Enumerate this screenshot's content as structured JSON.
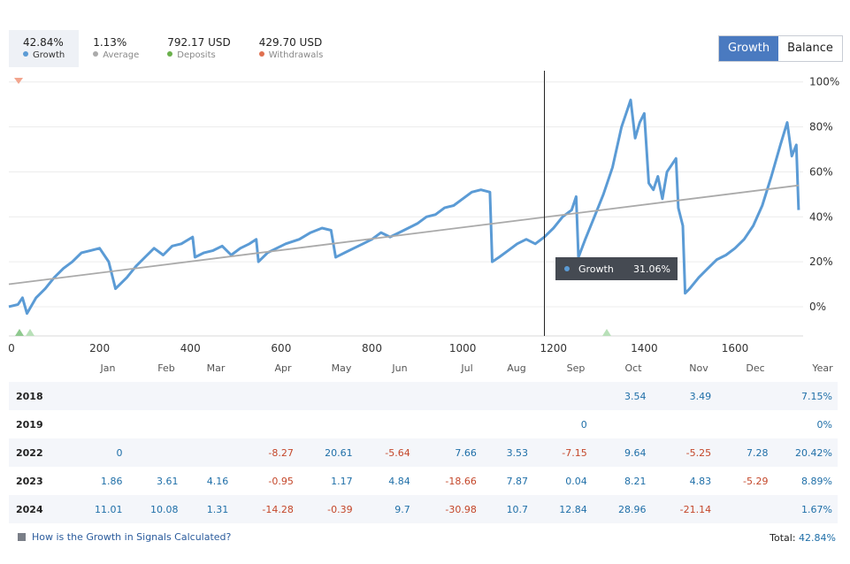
{
  "stats": [
    {
      "value": "42.84%",
      "label": "Growth",
      "color": "#5b9bd5",
      "active": true
    },
    {
      "value": "1.13%",
      "label": "Average",
      "color": "#aaaaaa",
      "active": false
    },
    {
      "value": "792.17 USD",
      "label": "Deposits",
      "color": "#6ab04c",
      "active": false
    },
    {
      "value": "429.70 USD",
      "label": "Withdrawals",
      "color": "#e07050",
      "active": false
    }
  ],
  "toggle": {
    "growth": "Growth",
    "balance": "Balance"
  },
  "tooltip": {
    "label": "Growth",
    "value": "31.06%"
  },
  "chart_data": {
    "type": "line",
    "xlim": [
      0,
      1750
    ],
    "ylim": [
      -13,
      105
    ],
    "x_ticks": [
      0,
      200,
      400,
      600,
      800,
      1000,
      1200,
      1400,
      1600
    ],
    "y_ticks": [
      0,
      20,
      40,
      60,
      80,
      100
    ],
    "y_tick_labels": [
      "0%",
      "20%",
      "40%",
      "60%",
      "80%",
      "100%"
    ],
    "crosshair_x": 1180,
    "series": [
      {
        "color": "#5b9bd5",
        "points": [
          [
            0,
            0
          ],
          [
            20,
            1
          ],
          [
            30,
            4
          ],
          [
            40,
            -3
          ],
          [
            60,
            4
          ],
          [
            80,
            8
          ],
          [
            100,
            13
          ],
          [
            120,
            17
          ],
          [
            140,
            20
          ],
          [
            160,
            24
          ],
          [
            180,
            25
          ],
          [
            200,
            26
          ],
          [
            220,
            20
          ],
          [
            235,
            8
          ],
          [
            260,
            13
          ],
          [
            280,
            18
          ],
          [
            300,
            22
          ],
          [
            320,
            26
          ],
          [
            340,
            23
          ],
          [
            360,
            27
          ],
          [
            380,
            28
          ],
          [
            405,
            31
          ],
          [
            410,
            22
          ],
          [
            430,
            24
          ],
          [
            450,
            25
          ],
          [
            470,
            27
          ],
          [
            490,
            23
          ],
          [
            510,
            26
          ],
          [
            530,
            28
          ],
          [
            545,
            30
          ],
          [
            550,
            20
          ],
          [
            570,
            24
          ],
          [
            590,
            26
          ],
          [
            610,
            28
          ],
          [
            640,
            30
          ],
          [
            665,
            33
          ],
          [
            690,
            35
          ],
          [
            710,
            34
          ],
          [
            720,
            22
          ],
          [
            740,
            24
          ],
          [
            760,
            26
          ],
          [
            780,
            28
          ],
          [
            800,
            30
          ],
          [
            820,
            33
          ],
          [
            840,
            31
          ],
          [
            860,
            33
          ],
          [
            880,
            35
          ],
          [
            900,
            37
          ],
          [
            920,
            40
          ],
          [
            940,
            41
          ],
          [
            960,
            44
          ],
          [
            980,
            45
          ],
          [
            1000,
            48
          ],
          [
            1020,
            51
          ],
          [
            1040,
            52
          ],
          [
            1060,
            51
          ],
          [
            1065,
            20
          ],
          [
            1080,
            22
          ],
          [
            1100,
            25
          ],
          [
            1120,
            28
          ],
          [
            1140,
            30
          ],
          [
            1160,
            28
          ],
          [
            1180,
            31
          ],
          [
            1200,
            35
          ],
          [
            1220,
            40
          ],
          [
            1240,
            43
          ],
          [
            1250,
            49
          ],
          [
            1255,
            22
          ],
          [
            1270,
            30
          ],
          [
            1290,
            40
          ],
          [
            1310,
            50
          ],
          [
            1330,
            62
          ],
          [
            1350,
            80
          ],
          [
            1360,
            86
          ],
          [
            1370,
            92
          ],
          [
            1380,
            75
          ],
          [
            1390,
            82
          ],
          [
            1400,
            86
          ],
          [
            1410,
            55
          ],
          [
            1420,
            52
          ],
          [
            1430,
            58
          ],
          [
            1440,
            48
          ],
          [
            1450,
            60
          ],
          [
            1460,
            63
          ],
          [
            1470,
            66
          ],
          [
            1475,
            44
          ],
          [
            1485,
            36
          ],
          [
            1490,
            6
          ],
          [
            1500,
            8
          ],
          [
            1520,
            13
          ],
          [
            1540,
            17
          ],
          [
            1560,
            21
          ],
          [
            1580,
            23
          ],
          [
            1600,
            26
          ],
          [
            1620,
            30
          ],
          [
            1640,
            36
          ],
          [
            1660,
            45
          ],
          [
            1680,
            58
          ],
          [
            1700,
            72
          ],
          [
            1715,
            82
          ],
          [
            1725,
            67
          ],
          [
            1735,
            72
          ],
          [
            1740,
            43
          ]
        ]
      },
      {
        "color": "#aaaaaa",
        "points": [
          [
            0,
            10
          ],
          [
            1740,
            54
          ]
        ]
      }
    ]
  },
  "months": [
    "Jan",
    "Feb",
    "Mar",
    "Apr",
    "May",
    "Jun",
    "Jul",
    "Aug",
    "Sep",
    "Oct",
    "Nov",
    "Dec",
    "Year"
  ],
  "table": [
    {
      "year": "2018",
      "cells": [
        "",
        "",
        "",
        "",
        "",
        "",
        "",
        "",
        "",
        "3.54",
        "3.49",
        "",
        "7.15%"
      ]
    },
    {
      "year": "2019",
      "cells": [
        "",
        "",
        "",
        "",
        "",
        "",
        "",
        "",
        "0",
        "",
        "",
        "",
        "0%"
      ]
    },
    {
      "year": "2022",
      "cells": [
        "0",
        "",
        "",
        "-8.27",
        "20.61",
        "-5.64",
        "7.66",
        "3.53",
        "-7.15",
        "9.64",
        "-5.25",
        "7.28",
        "20.42%"
      ]
    },
    {
      "year": "2023",
      "cells": [
        "1.86",
        "3.61",
        "4.16",
        "-0.95",
        "1.17",
        "4.84",
        "-18.66",
        "7.87",
        "0.04",
        "8.21",
        "4.83",
        "-5.29",
        "8.89%"
      ]
    },
    {
      "year": "2024",
      "cells": [
        "11.01",
        "10.08",
        "1.31",
        "-14.28",
        "-0.39",
        "9.7",
        "-30.98",
        "10.7",
        "12.84",
        "28.96",
        "-21.14",
        "",
        "1.67%"
      ]
    }
  ],
  "footer": {
    "link": "How is the Growth in Signals Calculated?",
    "total_label": "Total:",
    "total_value": "42.84%"
  }
}
